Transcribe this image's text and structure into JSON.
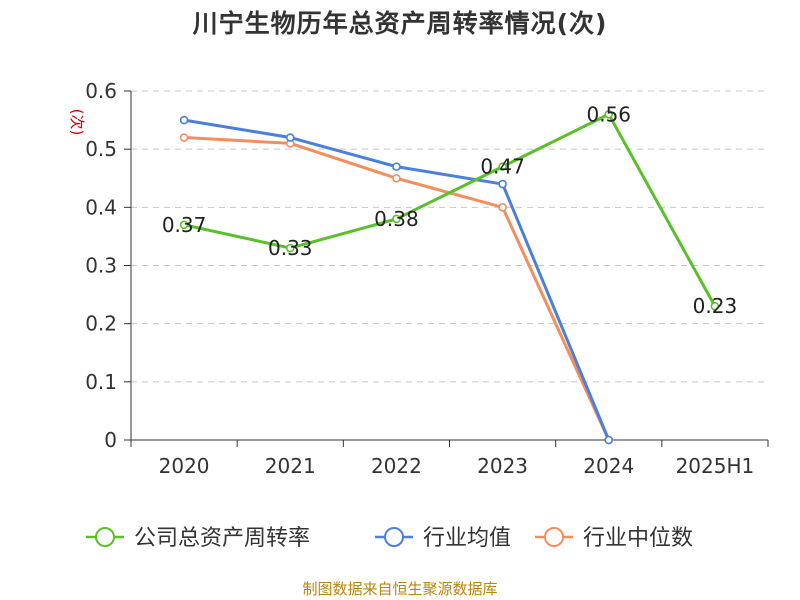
{
  "chart_data": {
    "type": "line",
    "title": "川宁生物历年总资产周转率情况(次)",
    "ylabel": "(次)",
    "xlabel": "",
    "ylim": [
      0,
      0.6
    ],
    "yticks": [
      "0",
      "0.1",
      "0.2",
      "0.3",
      "0.4",
      "0.5",
      "0.6"
    ],
    "grid": true,
    "legend_position": "bottom",
    "categories": [
      "2020",
      "2021",
      "2022",
      "2023",
      "2024",
      "2025H1"
    ],
    "series": [
      {
        "name": "公司总资产周转率",
        "color": "#5ac02a",
        "values": [
          0.37,
          0.33,
          0.38,
          0.47,
          0.56,
          0.23
        ],
        "labels": [
          "0.37",
          "0.33",
          "0.38",
          "0.47",
          "0.56",
          "0.23"
        ]
      },
      {
        "name": "行业均值",
        "color": "#4b7fdc",
        "values": [
          0.55,
          0.52,
          0.47,
          0.44,
          0,
          null
        ]
      },
      {
        "name": "行业中位数",
        "color": "#f68d5c",
        "values": [
          0.52,
          0.51,
          0.45,
          0.4,
          0,
          null
        ]
      }
    ]
  },
  "footer": {
    "source": "制图数据来自恒生聚源数据库"
  }
}
